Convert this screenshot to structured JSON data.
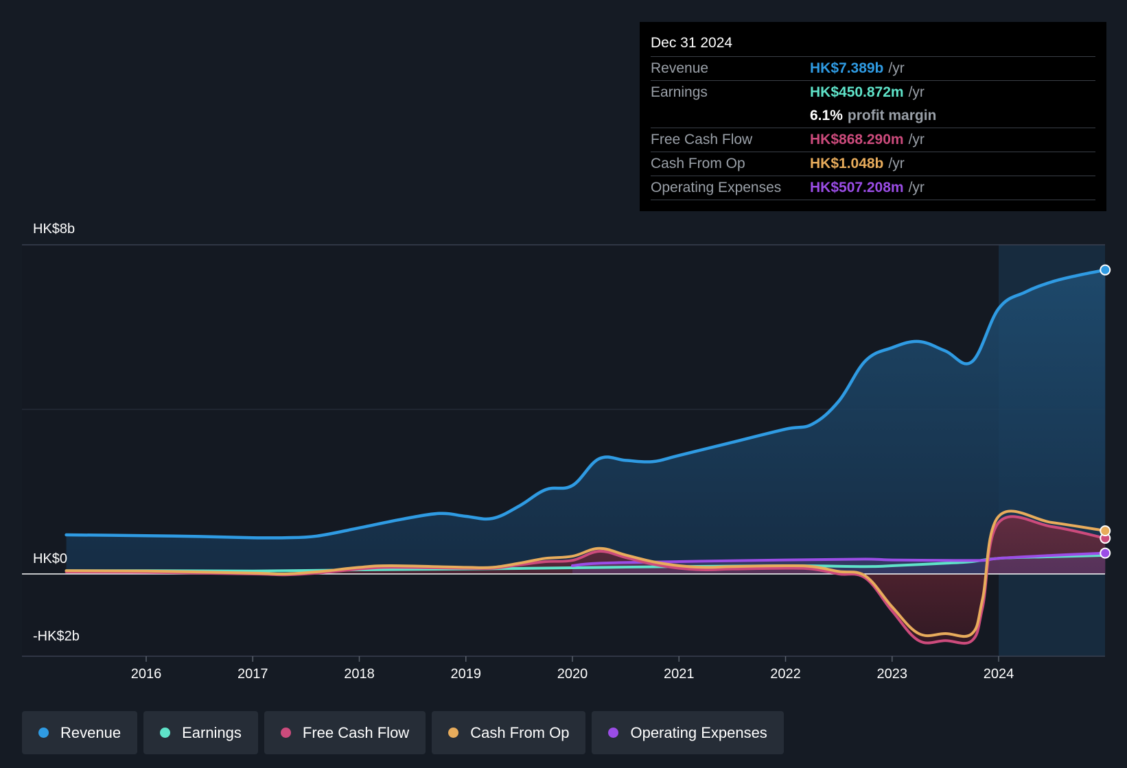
{
  "tooltip": {
    "date": "Dec 31 2024",
    "rows": {
      "revenue": {
        "label": "Revenue",
        "value": "HK$7.389b",
        "unit": "/yr"
      },
      "earnings": {
        "label": "Earnings",
        "value": "HK$450.872m",
        "unit": "/yr"
      },
      "margin": {
        "value": "6.1%",
        "text": "profit margin"
      },
      "fcf": {
        "label": "Free Cash Flow",
        "value": "HK$868.290m",
        "unit": "/yr"
      },
      "cfo": {
        "label": "Cash From Op",
        "value": "HK$1.048b",
        "unit": "/yr"
      },
      "opex": {
        "label": "Operating Expenses",
        "value": "HK$507.208m",
        "unit": "/yr"
      }
    }
  },
  "legend": [
    {
      "label": "Revenue",
      "color": "#2f9be3"
    },
    {
      "label": "Earnings",
      "color": "#5fe3c9"
    },
    {
      "label": "Free Cash Flow",
      "color": "#cc4b7c"
    },
    {
      "label": "Cash From Op",
      "color": "#e8ac5c"
    },
    {
      "label": "Operating Expenses",
      "color": "#9b4de6"
    }
  ],
  "chart_data": {
    "type": "area",
    "title": "",
    "y_labels": [
      "HK$8b",
      "HK$0",
      "-HK$2b"
    ],
    "ylim": [
      -2,
      8
    ],
    "unit": "HK$ billions",
    "x_ticks": [
      "2016",
      "2017",
      "2018",
      "2019",
      "2020",
      "2021",
      "2022",
      "2023",
      "2024"
    ],
    "xlim": [
      2015.0,
      2025.0
    ],
    "highlight_start": 2024.0,
    "series": [
      {
        "name": "Revenue",
        "color": "#2f9be3",
        "x": [
          2015.25,
          2016.0,
          2016.5,
          2017.0,
          2017.3,
          2017.6,
          2018.0,
          2018.4,
          2018.75,
          2019.0,
          2019.25,
          2019.5,
          2019.75,
          2020.0,
          2020.25,
          2020.5,
          2020.75,
          2021.0,
          2021.5,
          2022.0,
          2022.25,
          2022.5,
          2022.75,
          2023.0,
          2023.25,
          2023.5,
          2023.75,
          2024.0,
          2024.25,
          2024.5,
          2024.75,
          2025.0
        ],
        "y": [
          0.95,
          0.93,
          0.91,
          0.88,
          0.88,
          0.92,
          1.12,
          1.33,
          1.47,
          1.4,
          1.35,
          1.65,
          2.05,
          2.15,
          2.8,
          2.76,
          2.73,
          2.88,
          3.2,
          3.52,
          3.64,
          4.2,
          5.18,
          5.5,
          5.65,
          5.42,
          5.16,
          6.45,
          6.85,
          7.1,
          7.26,
          7.389
        ]
      },
      {
        "name": "Earnings",
        "color": "#5fe3c9",
        "x": [
          2015.25,
          2016.0,
          2017.0,
          2018.0,
          2019.0,
          2020.0,
          2021.0,
          2022.0,
          2022.75,
          2023.0,
          2023.5,
          2023.75,
          2024.0,
          2024.5,
          2025.0
        ],
        "y": [
          0.08,
          0.08,
          0.07,
          0.1,
          0.12,
          0.15,
          0.18,
          0.2,
          0.18,
          0.2,
          0.26,
          0.3,
          0.38,
          0.42,
          0.451
        ]
      },
      {
        "name": "Free Cash Flow",
        "color": "#cc4b7c",
        "x": [
          2015.25,
          2016.0,
          2017.0,
          2017.3,
          2017.6,
          2018.0,
          2018.3,
          2019.0,
          2019.25,
          2019.5,
          2019.75,
          2020.0,
          2020.25,
          2020.5,
          2020.75,
          2021.0,
          2021.25,
          2021.5,
          2022.0,
          2022.25,
          2022.5,
          2022.75,
          2023.0,
          2023.25,
          2023.5,
          2023.75,
          2023.85,
          2024.0,
          2024.5,
          2025.0
        ],
        "y": [
          0.05,
          0.04,
          0.0,
          -0.02,
          0.02,
          0.12,
          0.16,
          0.14,
          0.14,
          0.22,
          0.3,
          0.33,
          0.55,
          0.4,
          0.24,
          0.14,
          0.1,
          0.12,
          0.14,
          0.12,
          0.0,
          -0.1,
          -0.9,
          -1.62,
          -1.62,
          -1.62,
          -0.8,
          1.25,
          1.15,
          0.868
        ]
      },
      {
        "name": "Cash From Op",
        "color": "#e8ac5c",
        "x": [
          2015.25,
          2016.0,
          2017.0,
          2017.3,
          2017.6,
          2018.0,
          2018.3,
          2019.0,
          2019.25,
          2019.5,
          2019.75,
          2020.0,
          2020.25,
          2020.5,
          2020.75,
          2021.0,
          2021.25,
          2021.5,
          2022.0,
          2022.25,
          2022.5,
          2022.75,
          2023.0,
          2023.25,
          2023.5,
          2023.75,
          2023.85,
          2024.0,
          2024.5,
          2025.0
        ],
        "y": [
          0.08,
          0.07,
          0.02,
          0.0,
          0.05,
          0.16,
          0.2,
          0.16,
          0.16,
          0.26,
          0.38,
          0.43,
          0.62,
          0.46,
          0.3,
          0.2,
          0.16,
          0.18,
          0.2,
          0.18,
          0.06,
          -0.05,
          -0.8,
          -1.45,
          -1.45,
          -1.45,
          -0.6,
          1.4,
          1.25,
          1.048
        ]
      },
      {
        "name": "Operating Expenses",
        "color": "#9b4de6",
        "x": [
          2020.0,
          2020.25,
          2021.0,
          2022.0,
          2022.75,
          2023.0,
          2023.5,
          2023.85,
          2024.0,
          2024.5,
          2025.0
        ],
        "y": [
          0.2,
          0.26,
          0.3,
          0.34,
          0.36,
          0.34,
          0.33,
          0.33,
          0.38,
          0.45,
          0.507
        ]
      }
    ]
  }
}
